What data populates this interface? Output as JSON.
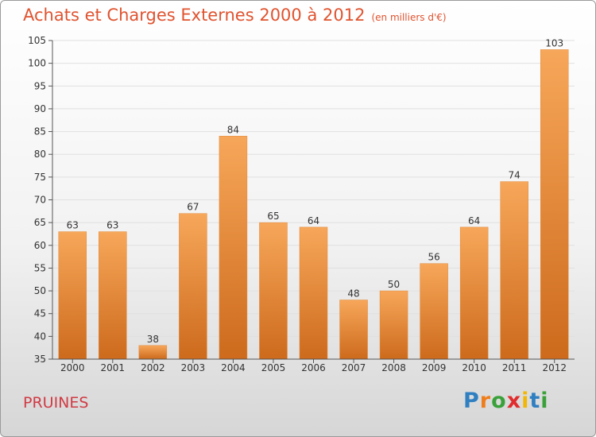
{
  "header": {
    "title": "Achats et Charges Externes 2000 à 2012",
    "unit": "(en milliers d'€)"
  },
  "footer": {
    "town": "PRUINES",
    "logo_letters": [
      {
        "ch": "P",
        "color": "#2f7fc1"
      },
      {
        "ch": "r",
        "color": "#ef7d1a"
      },
      {
        "ch": "o",
        "color": "#3aa13a"
      },
      {
        "ch": "x",
        "color": "#e02c2c"
      },
      {
        "ch": "i",
        "color": "#f2b705"
      },
      {
        "ch": "t",
        "color": "#2f7fc1"
      },
      {
        "ch": "i",
        "color": "#3aa13a"
      }
    ]
  },
  "chart_data": {
    "type": "bar",
    "title": "Achats et Charges Externes 2000 à 2012",
    "categories": [
      "2000",
      "2001",
      "2002",
      "2003",
      "2004",
      "2005",
      "2006",
      "2007",
      "2008",
      "2009",
      "2010",
      "2011",
      "2012"
    ],
    "values": [
      63,
      63,
      38,
      67,
      84,
      65,
      64,
      48,
      50,
      56,
      64,
      74,
      103
    ],
    "ylim": [
      35,
      105
    ],
    "yticks": [
      35,
      40,
      45,
      50,
      55,
      60,
      65,
      70,
      75,
      80,
      85,
      90,
      95,
      100,
      105
    ],
    "grid": true,
    "colors": {
      "bar_light": "#f7a75a",
      "bar_dark": "#cd6a1c",
      "grid": "#e0e0e0"
    }
  }
}
